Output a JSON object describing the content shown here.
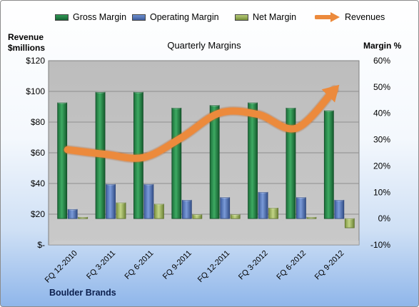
{
  "chart_data": {
    "type": "bar",
    "title": "Quarterly Margins",
    "company": "Boulder Brands",
    "y_left_label": [
      "Revenue",
      "$millions"
    ],
    "y_right_label": "Margin %",
    "categories": [
      "FQ 12-2010",
      "FQ 3-2011",
      "FQ 6-2011",
      "FQ 9-2011",
      "FQ 12-2011",
      "FQ 3-2012",
      "FQ 6-2012",
      "FQ 9-2012"
    ],
    "ylim_left": [
      0,
      120
    ],
    "ylim_right": [
      -10,
      60
    ],
    "y_left_ticks": [
      "$-",
      "$20",
      "$40",
      "$60",
      "$80",
      "$100",
      "$120"
    ],
    "y_right_ticks": [
      "-10%",
      "0%",
      "10%",
      "20%",
      "30%",
      "40%",
      "50%",
      "60%"
    ],
    "series": [
      {
        "name": "Gross Margin",
        "axis": "right",
        "kind": "bar",
        "color": "#1e7a40",
        "values": [
          44,
          48,
          48,
          42,
          43,
          44,
          42,
          41
        ]
      },
      {
        "name": "Operating Margin",
        "axis": "right",
        "kind": "bar",
        "color": "#4a6db4",
        "values": [
          3.5,
          13,
          13,
          7,
          8,
          10,
          8,
          7
        ]
      },
      {
        "name": "Net Margin",
        "axis": "right",
        "kind": "bar",
        "color": "#93aa4d",
        "values": [
          0.5,
          6,
          5.5,
          1.5,
          1.5,
          4,
          0.5,
          -3.5
        ]
      },
      {
        "name": "Revenues",
        "axis": "left",
        "kind": "line",
        "color": "#ec8a3c",
        "values": [
          62,
          59,
          57,
          70,
          86,
          85,
          76,
          101
        ]
      }
    ],
    "grid": true,
    "legend_position": "top"
  },
  "colors": {
    "plot_bg": "#bfbfbf",
    "plot_border": "#7f7f7f"
  }
}
